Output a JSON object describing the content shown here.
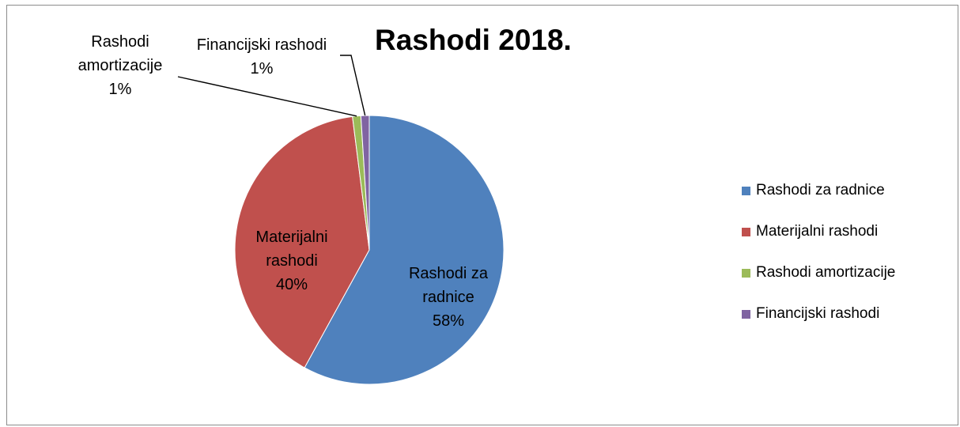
{
  "chart_data": {
    "type": "pie",
    "title": "Rashodi 2018.",
    "slices": [
      {
        "name": "Rashodi za radnice",
        "value": 58,
        "percent_label": "58%",
        "color": "#4F81BD",
        "label_lines": [
          "Rashodi za",
          "radnice",
          "58%"
        ]
      },
      {
        "name": "Materijalni rashodi",
        "value": 40,
        "percent_label": "40%",
        "color": "#C0504D",
        "label_lines": [
          "Materijalni",
          "rashodi",
          "40%"
        ]
      },
      {
        "name": "Rashodi amortizacije",
        "value": 1,
        "percent_label": "1%",
        "color": "#9BBB59",
        "label_lines": [
          "Rashodi",
          "amortizacije",
          "1%"
        ]
      },
      {
        "name": "Financijski rashodi",
        "value": 1,
        "percent_label": "1%",
        "color": "#8064A2",
        "label_lines": [
          "Financijski rashodi",
          "1%"
        ]
      }
    ],
    "legend_position": "right"
  }
}
